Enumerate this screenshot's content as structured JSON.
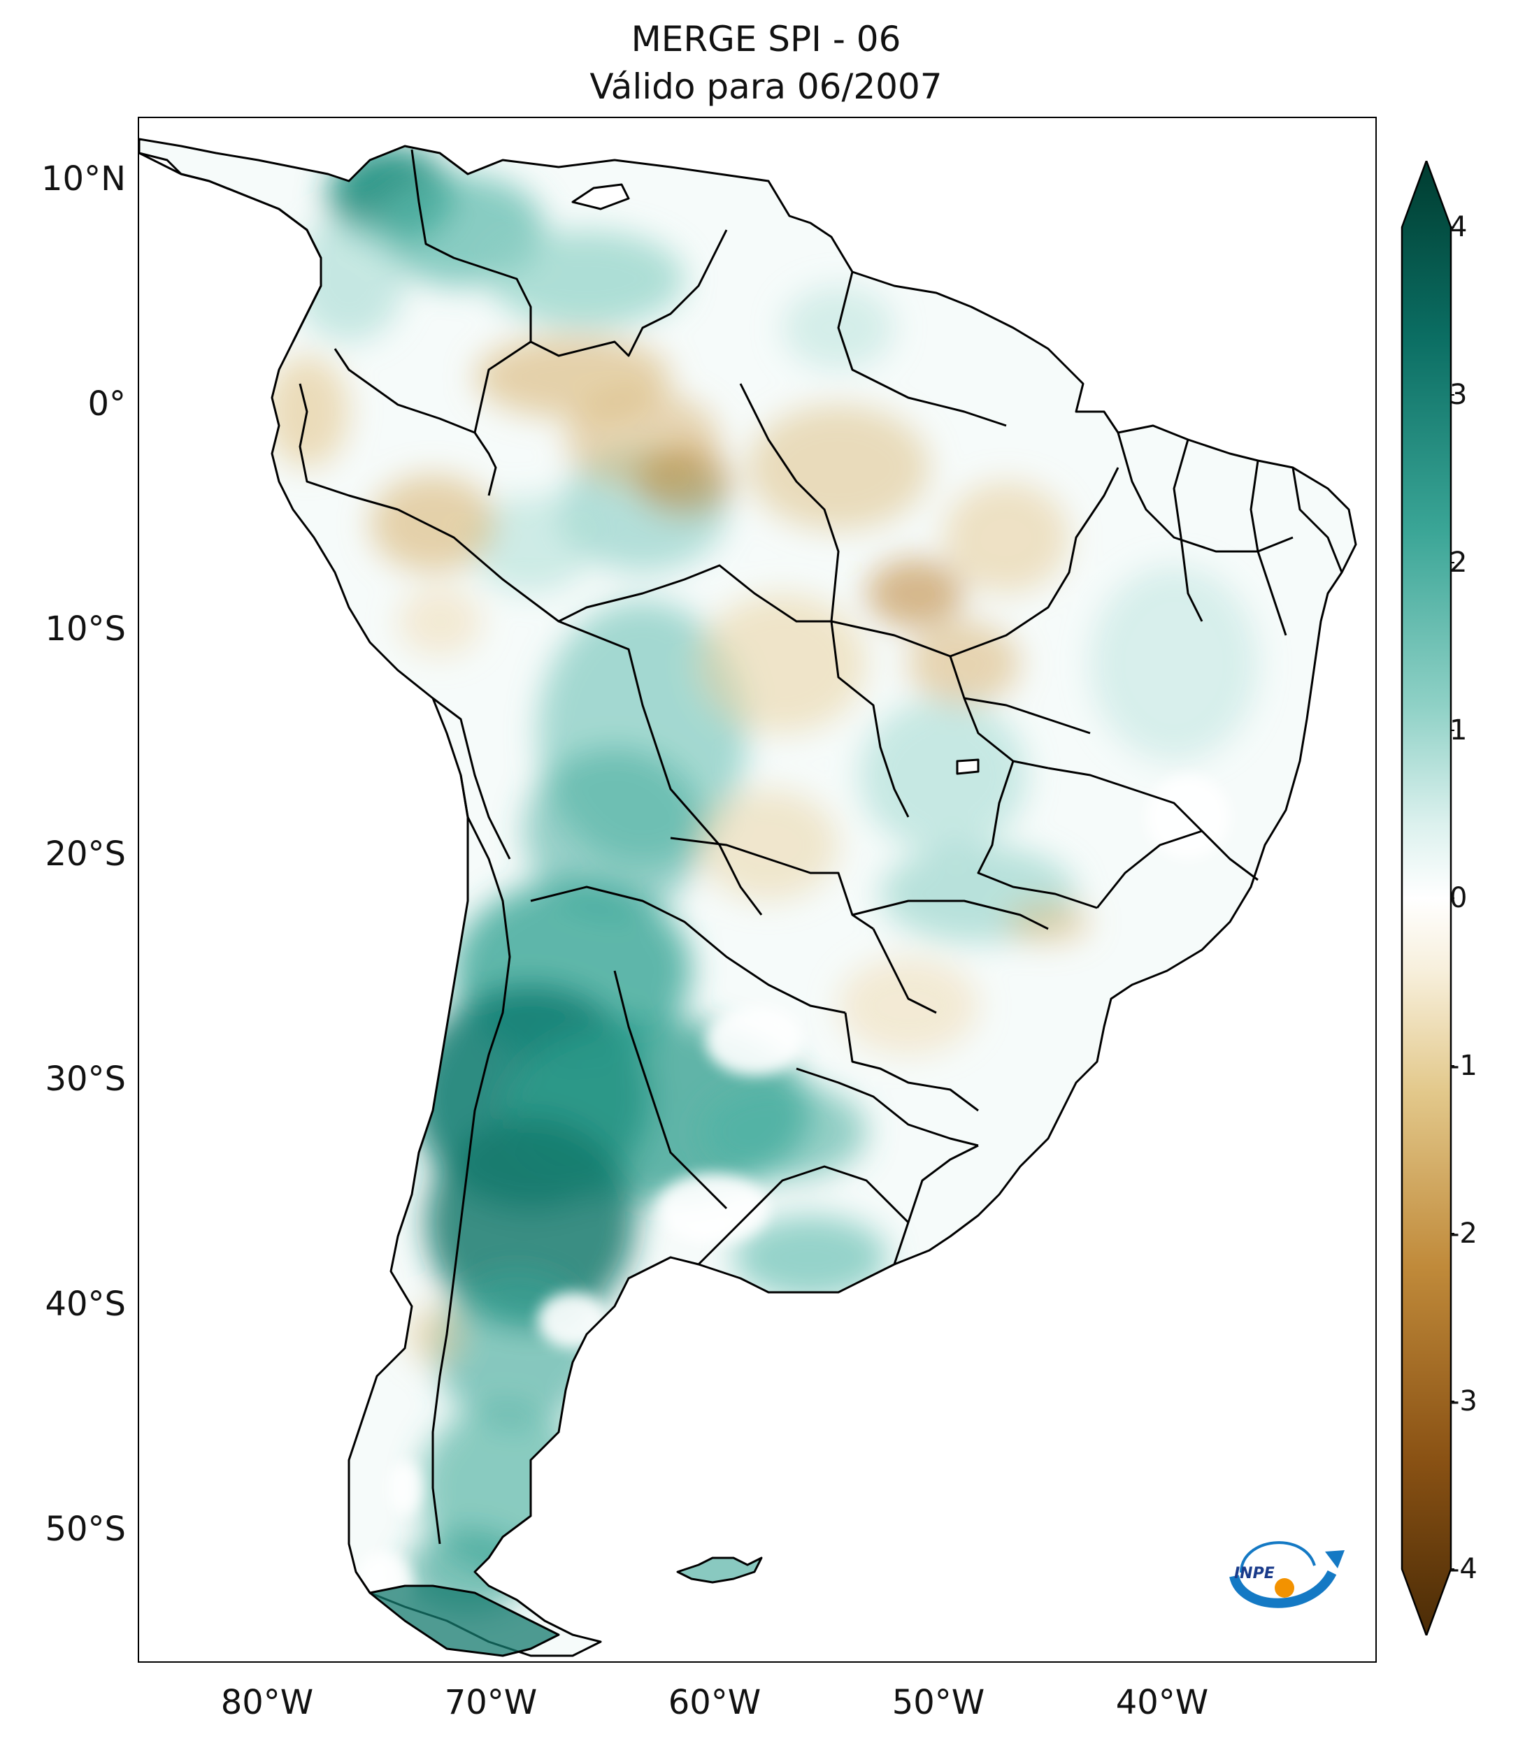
{
  "title": {
    "line1": "MERGE   SPI - 06",
    "line2": "Válido para 06/2007"
  },
  "axes": {
    "lat_labels": [
      "10°N",
      "0°",
      "10°S",
      "20°S",
      "30°S",
      "40°S",
      "50°S"
    ],
    "lon_labels": [
      "80°W",
      "70°W",
      "60°W",
      "50°W",
      "40°W"
    ]
  },
  "colorbar": {
    "ticks": [
      "4",
      "3",
      "2",
      "1",
      "0",
      "-1",
      "-2",
      "-3",
      "-4"
    ],
    "colors": [
      "#4a2b06",
      "#8a5214",
      "#c08a3a",
      "#e3c98c",
      "#f7efdb",
      "#ffffff",
      "#dcf1ee",
      "#8fd1c6",
      "#3aa596",
      "#0b6e63",
      "#003c30"
    ]
  },
  "logo": {
    "text": "INPE"
  },
  "map": {
    "region": "South America",
    "variable": "SPI-06",
    "lon_range": [
      -85,
      -30
    ],
    "lat_range": [
      -56,
      13
    ]
  }
}
